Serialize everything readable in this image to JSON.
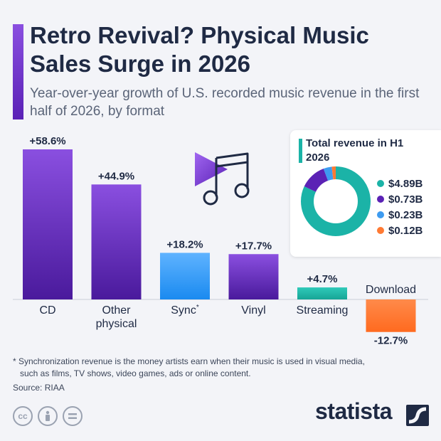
{
  "header": {
    "title": "Retro Revival? Physical Music Sales Surge in 2026",
    "subtitle": "Year-over-year growth of U.S. recorded music revenue in the first half of 2026, by format"
  },
  "chart_data": [
    {
      "type": "bar",
      "categories": [
        "CD",
        "Other physical",
        "Sync*",
        "Vinyl",
        "Streaming",
        "Download"
      ],
      "values": [
        58.6,
        44.9,
        18.2,
        17.7,
        4.7,
        -12.7
      ],
      "value_labels": [
        "+58.6%",
        "+44.9%",
        "+18.2%",
        "+17.7%",
        "+4.7%",
        "-12.7%"
      ],
      "colors": [
        "#5b22b5",
        "#5b22b5",
        "#2196f3",
        "#5b22b5",
        "#1bb3a7",
        "#ff7a33"
      ],
      "title": "",
      "xlabel": "",
      "ylabel": "",
      "ylim": [
        -12.7,
        58.6
      ],
      "grid": false
    },
    {
      "type": "pie",
      "title": "Total revenue in H1 2026",
      "labels": [
        "$4.89B",
        "$0.73B",
        "$0.23B",
        "$0.12B"
      ],
      "values": [
        4.89,
        0.73,
        0.23,
        0.12
      ],
      "colors": [
        "#1bb3a7",
        "#5b22b5",
        "#3d9bf0",
        "#ff7a33"
      ],
      "legend_position": "right"
    }
  ],
  "footnote": {
    "line1": "* Synchronization revenue is the money artists earn when their music is used in visual media,",
    "line2": "such as films, TV shows, video games, ads or online content."
  },
  "source": "Source: RIAA",
  "license_icons": [
    "cc-icon",
    "attribution-icon",
    "no-derivatives-icon"
  ],
  "brand": "statista"
}
